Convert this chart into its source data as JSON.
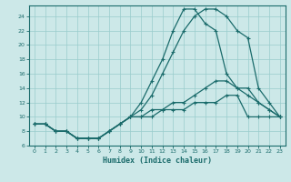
{
  "xlabel": "Humidex (Indice chaleur)",
  "bg_color": "#cce8e8",
  "grid_color": "#99cccc",
  "line_color": "#1a6b6b",
  "xlim": [
    -0.5,
    23.5
  ],
  "ylim": [
    6,
    25.5
  ],
  "xticks": [
    0,
    1,
    2,
    3,
    4,
    5,
    6,
    7,
    8,
    9,
    10,
    11,
    12,
    13,
    14,
    15,
    16,
    17,
    18,
    19,
    20,
    21,
    22,
    23
  ],
  "yticks": [
    6,
    8,
    10,
    12,
    14,
    16,
    18,
    20,
    22,
    24
  ],
  "line_main_x": [
    0,
    1,
    2,
    3,
    4,
    5,
    6,
    7,
    8,
    9,
    10,
    11,
    12,
    13,
    14,
    15,
    16,
    17,
    18,
    19,
    20,
    21,
    22,
    23
  ],
  "line_main_y": [
    9,
    9,
    8,
    8,
    7,
    7,
    7,
    8,
    9,
    10,
    11,
    13,
    16,
    19,
    22,
    24,
    25,
    25,
    24,
    22,
    21,
    14,
    12,
    10
  ],
  "line_peak2_x": [
    0,
    1,
    2,
    3,
    4,
    5,
    6,
    7,
    8,
    9,
    10,
    11,
    12,
    13,
    14,
    15,
    16,
    17,
    18,
    19,
    20,
    21,
    22,
    23
  ],
  "line_peak2_y": [
    9,
    9,
    8,
    8,
    7,
    7,
    7,
    8,
    9,
    10,
    12,
    15,
    18,
    22,
    25,
    25,
    23,
    22,
    16,
    14,
    13,
    12,
    11,
    10
  ],
  "line_flat1_x": [
    0,
    1,
    2,
    3,
    4,
    5,
    6,
    7,
    8,
    9,
    10,
    11,
    12,
    13,
    14,
    15,
    16,
    17,
    18,
    19,
    20,
    21,
    22,
    23
  ],
  "line_flat1_y": [
    9,
    9,
    8,
    8,
    7,
    7,
    7,
    8,
    9,
    10,
    10,
    11,
    11,
    12,
    12,
    13,
    14,
    15,
    15,
    14,
    14,
    12,
    11,
    10
  ],
  "line_flat2_x": [
    0,
    1,
    2,
    3,
    4,
    5,
    6,
    7,
    8,
    9,
    10,
    11,
    12,
    13,
    14,
    15,
    16,
    17,
    18,
    19,
    20,
    21,
    22,
    23
  ],
  "line_flat2_y": [
    9,
    9,
    8,
    8,
    7,
    7,
    7,
    8,
    9,
    10,
    10,
    10,
    11,
    11,
    11,
    12,
    12,
    12,
    13,
    13,
    10,
    10,
    10,
    10
  ]
}
